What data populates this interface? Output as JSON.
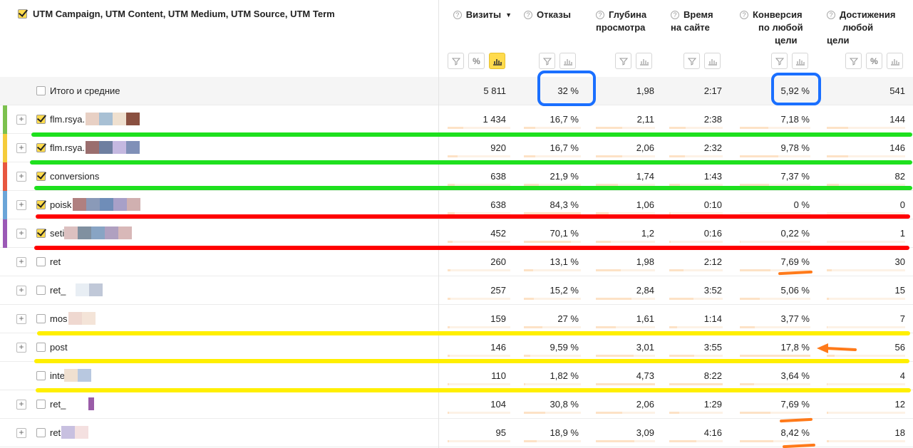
{
  "header": {
    "dimension_label": "UTM Campaign, UTM Content, UTM Medium, UTM Source, UTM Term",
    "metrics": [
      {
        "id": "visits",
        "label": "Визиты",
        "sort": "▼"
      },
      {
        "id": "bounces",
        "label": "Отказы"
      },
      {
        "id": "depth",
        "label_line1": "Глубина",
        "label_line2": "просмотра"
      },
      {
        "id": "time",
        "label_line1": "Время",
        "label_line2": "на сайте"
      },
      {
        "id": "conv",
        "label_line1": "Конверсия",
        "label_line2": "по любой",
        "label_line3": "цели"
      },
      {
        "id": "goals",
        "label_line1": "Достижения",
        "label_line2": "любой цели"
      }
    ],
    "icons": {
      "filter": "filter-icon",
      "percent": "percent-icon",
      "chart": "bar-chart-icon",
      "help": "help-icon"
    },
    "percent_symbol": "%",
    "help_symbol": "?"
  },
  "total": {
    "label": "Итого и средние",
    "visits": "5 811",
    "bounces": "32 %",
    "depth": "1,98",
    "time": "2:17",
    "conv": "5,92 %",
    "goals": "541"
  },
  "rows": [
    {
      "name": "flm.rsya.",
      "checked": true,
      "expand": true,
      "color": "#7cc14e",
      "visits": "1 434",
      "bounces": "16,7 %",
      "depth": "2,11",
      "time": "2:38",
      "conv": "7,18 %",
      "goals": "144",
      "bar_visits": 0.25,
      "bar_bounces": 0.2,
      "bar_depth": 0.45,
      "bar_time": 0.3,
      "bar_conv": 0.4,
      "bar_goals": 0.27
    },
    {
      "name": "flm.rsya.",
      "checked": true,
      "expand": true,
      "color": "#f5cc3a",
      "visits": "920",
      "bounces": "16,7 %",
      "depth": "2,06",
      "time": "2:32",
      "conv": "9,78 %",
      "goals": "146",
      "bar_visits": 0.16,
      "bar_bounces": 0.2,
      "bar_depth": 0.44,
      "bar_time": 0.29,
      "bar_conv": 0.55,
      "bar_goals": 0.27
    },
    {
      "name": "conversions",
      "checked": true,
      "expand": true,
      "color": "#e8573f",
      "visits": "638",
      "bounces": "21,9 %",
      "depth": "1,74",
      "time": "1:43",
      "conv": "7,37 %",
      "goals": "82",
      "bar_visits": 0.11,
      "bar_bounces": 0.26,
      "bar_depth": 0.37,
      "bar_time": 0.2,
      "bar_conv": 0.41,
      "bar_goals": 0.15
    },
    {
      "name": "poisk",
      "checked": true,
      "expand": true,
      "color": "#6aa5d8",
      "visits": "638",
      "bounces": "84,3 %",
      "depth": "1,06",
      "time": "0:10",
      "conv": "0 %",
      "goals": "0",
      "bar_visits": 0.11,
      "bar_bounces": 1.0,
      "bar_depth": 0.22,
      "bar_time": 0.02,
      "bar_conv": 0.0,
      "bar_goals": 0.0
    },
    {
      "name": "seti",
      "checked": true,
      "expand": true,
      "color": "#9b59b6",
      "visits": "452",
      "bounces": "70,1 %",
      "depth": "1,2",
      "time": "0:16",
      "conv": "0,22 %",
      "goals": "1",
      "bar_visits": 0.08,
      "bar_bounces": 0.83,
      "bar_depth": 0.25,
      "bar_time": 0.03,
      "bar_conv": 0.01,
      "bar_goals": 0.0
    },
    {
      "name": "ret",
      "checked": false,
      "expand": true,
      "color": "",
      "visits": "260",
      "bounces": "13,1 %",
      "depth": "1,98",
      "time": "2:12",
      "conv": "7,69 %",
      "goals": "30",
      "bar_visits": 0.05,
      "bar_bounces": 0.16,
      "bar_depth": 0.42,
      "bar_time": 0.26,
      "bar_conv": 0.43,
      "bar_goals": 0.06
    },
    {
      "name": "ret_",
      "checked": false,
      "expand": true,
      "color": "",
      "visits": "257",
      "bounces": "15,2 %",
      "depth": "2,84",
      "time": "3:52",
      "conv": "5,06 %",
      "goals": "15",
      "bar_visits": 0.05,
      "bar_bounces": 0.18,
      "bar_depth": 0.6,
      "bar_time": 0.45,
      "bar_conv": 0.28,
      "bar_goals": 0.03
    },
    {
      "name": "mos",
      "checked": false,
      "expand": true,
      "color": "",
      "visits": "159",
      "bounces": "27 %",
      "depth": "1,61",
      "time": "1:14",
      "conv": "3,77 %",
      "goals": "7",
      "bar_visits": 0.03,
      "bar_bounces": 0.32,
      "bar_depth": 0.34,
      "bar_time": 0.14,
      "bar_conv": 0.21,
      "bar_goals": 0.01
    },
    {
      "name": "post",
      "checked": false,
      "expand": true,
      "color": "",
      "visits": "146",
      "bounces": "9,59 %",
      "depth": "3,01",
      "time": "3:55",
      "conv": "17,8 %",
      "goals": "56",
      "bar_visits": 0.03,
      "bar_bounces": 0.11,
      "bar_depth": 0.64,
      "bar_time": 0.46,
      "bar_conv": 1.0,
      "bar_goals": 0.1
    },
    {
      "name": "inte",
      "checked": false,
      "expand": false,
      "color": "",
      "visits": "110",
      "bounces": "1,82 %",
      "depth": "4,73",
      "time": "8:22",
      "conv": "3,64 %",
      "goals": "4",
      "bar_visits": 0.02,
      "bar_bounces": 0.02,
      "bar_depth": 1.0,
      "bar_time": 1.0,
      "bar_conv": 0.2,
      "bar_goals": 0.01
    },
    {
      "name": "ret_",
      "checked": false,
      "expand": true,
      "color": "",
      "visits": "104",
      "bounces": "30,8 %",
      "depth": "2,06",
      "time": "1:29",
      "conv": "7,69 %",
      "goals": "12",
      "bar_visits": 0.02,
      "bar_bounces": 0.37,
      "bar_depth": 0.44,
      "bar_time": 0.18,
      "bar_conv": 0.43,
      "bar_goals": 0.02
    },
    {
      "name": "ret",
      "checked": false,
      "expand": true,
      "color": "",
      "visits": "95",
      "bounces": "18,9 %",
      "depth": "3,09",
      "time": "4:16",
      "conv": "8,42 %",
      "goals": "18",
      "bar_visits": 0.02,
      "bar_bounces": 0.22,
      "bar_depth": 0.65,
      "bar_time": 0.51,
      "bar_conv": 0.47,
      "bar_goals": 0.03
    }
  ],
  "annotation_colors": {
    "green": "#1ee01e",
    "red": "#ff0000",
    "yellow": "#ffef00",
    "blue": "#1a6fff",
    "orange": "#ff7a1a"
  },
  "plus_symbol": "+"
}
